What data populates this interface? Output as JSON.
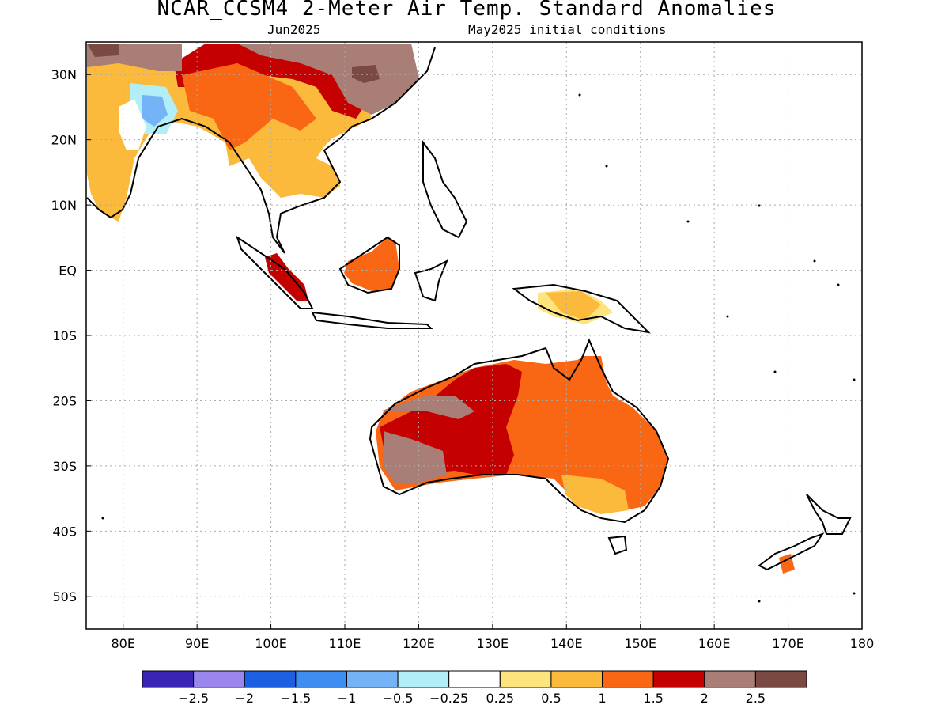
{
  "title": "NCAR_CCSM4 2-Meter Air Temp. Standard Anomalies",
  "subtitle_left": "Jun2025",
  "subtitle_right": "May2025 initial conditions",
  "map": {
    "lon_range": [
      75,
      180
    ],
    "lat_range": [
      -55,
      35
    ],
    "lon_ticks": [
      "80E",
      "90E",
      "100E",
      "110E",
      "120E",
      "130E",
      "140E",
      "150E",
      "160E",
      "170E",
      "180"
    ],
    "lat_ticks": [
      "30N",
      "20N",
      "10N",
      "EQ",
      "10S",
      "20S",
      "30S",
      "40S",
      "50S"
    ],
    "grid": "dotted"
  },
  "colorbar": {
    "colors": [
      "#3a24b6",
      "#9b86ee",
      "#1c5fe0",
      "#3e8ef2",
      "#74b4f6",
      "#b1eef8",
      "#ffffff",
      "#fde47c",
      "#fbba3c",
      "#f96614",
      "#c40000",
      "#a87e76",
      "#7a4a42"
    ],
    "labels": [
      "-2.5",
      "-2",
      "-1.5",
      "-1",
      "-0.5",
      "-0.25",
      "0.25",
      "0.5",
      "1",
      "1.5",
      "2",
      "2.5"
    ]
  }
}
